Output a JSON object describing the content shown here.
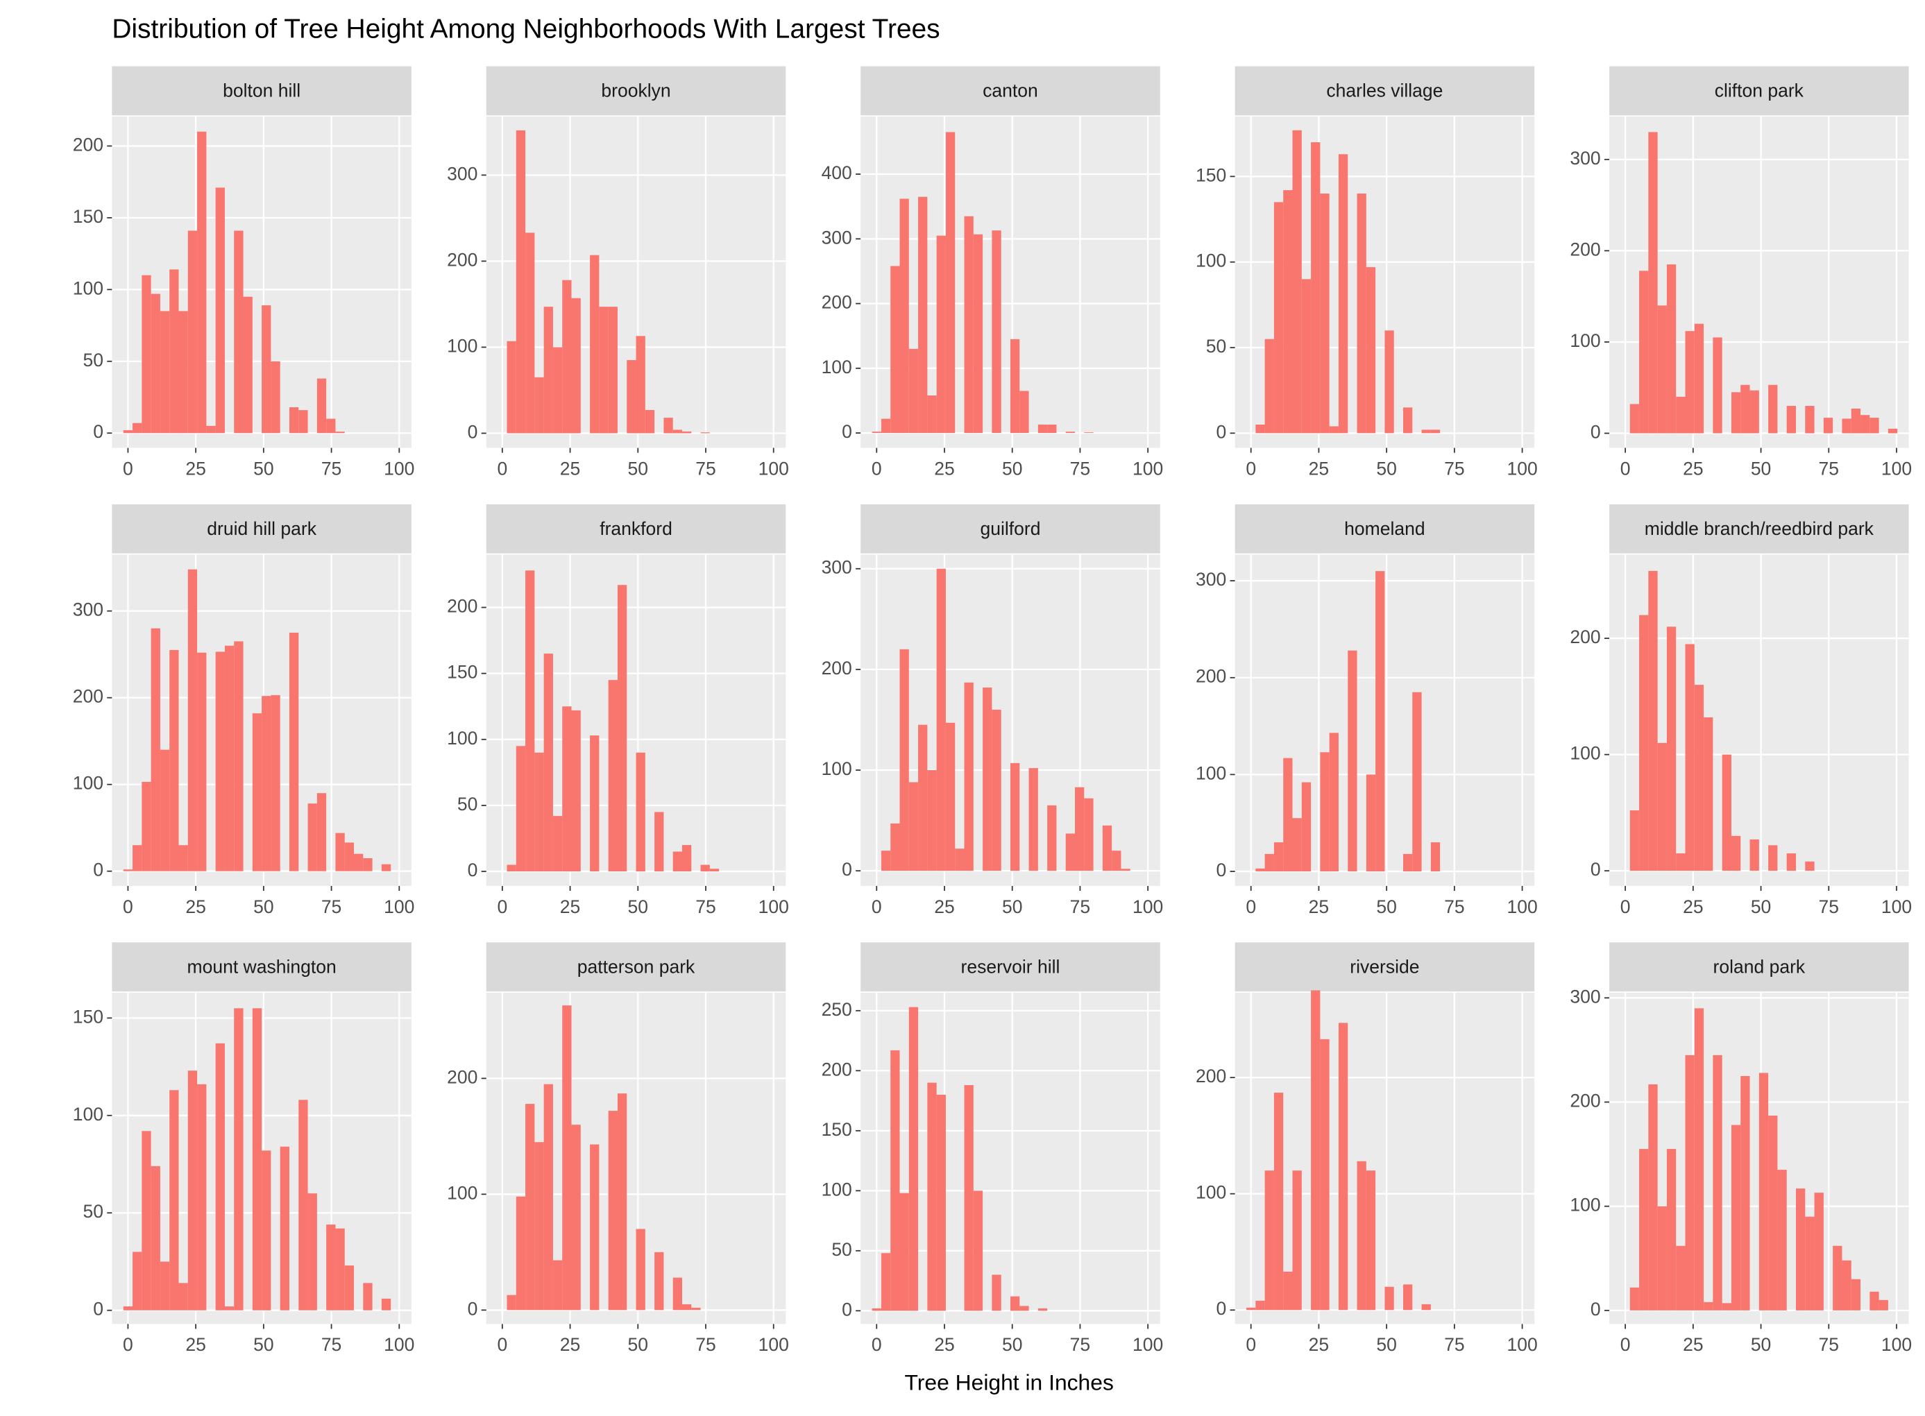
{
  "chart_data": {
    "type": "histogram",
    "title": "Distribution of Tree Height Among Neighborhoods With Largest Trees",
    "x_label": "Tree Height in Inches",
    "color": "#f8766d",
    "xlim": [
      -5.9,
      104.5
    ],
    "xticks": [
      0,
      25,
      50,
      75,
      100
    ],
    "bins": [
      -1.7,
      1.7,
      5.1,
      8.5,
      11.9,
      15.3,
      18.7,
      22.1,
      25.5,
      28.9,
      32.3,
      35.7,
      39.1,
      42.5,
      45.9,
      49.3,
      52.7,
      56.1,
      59.5,
      62.9,
      66.3,
      69.7,
      73.1,
      76.5,
      79.9,
      83.3,
      86.7,
      90.1,
      93.5,
      96.9,
      100.3
    ],
    "panels": [
      {
        "name": "bolton hill",
        "ylim": [
          -10.3,
          220.5
        ],
        "yticks": [
          0,
          50,
          100,
          150,
          200
        ],
        "values": [
          2,
          7,
          110,
          97,
          85,
          114,
          85,
          141,
          210,
          5,
          171,
          0,
          141,
          95,
          0,
          89,
          50,
          0,
          18,
          16,
          0,
          38,
          10,
          1,
          0,
          0,
          0,
          0,
          0,
          0
        ]
      },
      {
        "name": "brooklyn",
        "ylim": [
          -17,
          368
        ],
        "yticks": [
          0,
          100,
          200,
          300
        ],
        "values": [
          0,
          107,
          352,
          233,
          65,
          147,
          100,
          178,
          157,
          0,
          207,
          147,
          147,
          0,
          85,
          113,
          27,
          0,
          18,
          4,
          2,
          0,
          1,
          0,
          0,
          0,
          0,
          0,
          0,
          0
        ]
      },
      {
        "name": "canton",
        "ylim": [
          -23,
          489
        ],
        "yticks": [
          0,
          100,
          200,
          300,
          400
        ],
        "values": [
          2,
          22,
          258,
          362,
          130,
          365,
          58,
          305,
          465,
          0,
          335,
          307,
          0,
          313,
          0,
          145,
          65,
          0,
          13,
          13,
          0,
          2,
          0,
          1,
          0,
          0,
          0,
          0,
          0,
          0
        ]
      },
      {
        "name": "charles village",
        "ylim": [
          -8.6,
          185
        ],
        "yticks": [
          0,
          50,
          100,
          150
        ],
        "values": [
          0,
          5,
          55,
          135,
          142,
          177,
          90,
          170,
          140,
          4,
          163,
          0,
          140,
          97,
          0,
          60,
          0,
          15,
          0,
          2,
          2,
          0,
          0,
          0,
          0,
          0,
          0,
          0,
          0,
          0
        ]
      },
      {
        "name": "clifton park",
        "ylim": [
          -16,
          347
        ],
        "yticks": [
          0,
          100,
          200,
          300
        ],
        "values": [
          0,
          32,
          178,
          330,
          140,
          185,
          40,
          112,
          120,
          0,
          105,
          0,
          45,
          53,
          47,
          0,
          53,
          0,
          30,
          0,
          30,
          0,
          17,
          0,
          16,
          27,
          20,
          17,
          0,
          5
        ]
      },
      {
        "name": "druid hill park",
        "ylim": [
          -17,
          365
        ],
        "yticks": [
          0,
          100,
          200,
          300
        ],
        "values": [
          2,
          30,
          103,
          280,
          140,
          255,
          30,
          348,
          252,
          0,
          253,
          260,
          265,
          0,
          182,
          202,
          203,
          0,
          275,
          0,
          78,
          90,
          0,
          44,
          33,
          20,
          15,
          0,
          8,
          0
        ]
      },
      {
        "name": "frankford",
        "ylim": [
          -11,
          240
        ],
        "yticks": [
          0,
          50,
          100,
          150,
          200
        ],
        "values": [
          0,
          5,
          95,
          228,
          90,
          165,
          42,
          125,
          122,
          0,
          103,
          0,
          145,
          217,
          0,
          90,
          0,
          45,
          0,
          15,
          20,
          0,
          5,
          2,
          0,
          0,
          0,
          0,
          0,
          0
        ]
      },
      {
        "name": "guilford",
        "ylim": [
          -15,
          314
        ],
        "yticks": [
          0,
          100,
          200,
          300
        ],
        "values": [
          0,
          20,
          47,
          220,
          88,
          145,
          100,
          300,
          147,
          22,
          187,
          0,
          182,
          160,
          0,
          107,
          0,
          102,
          0,
          65,
          0,
          37,
          83,
          72,
          0,
          45,
          20,
          2,
          0,
          0
        ]
      },
      {
        "name": "homeland",
        "ylim": [
          -15,
          327
        ],
        "yticks": [
          0,
          100,
          200,
          300
        ],
        "values": [
          0,
          3,
          18,
          30,
          117,
          55,
          92,
          0,
          123,
          143,
          0,
          228,
          0,
          100,
          310,
          0,
          0,
          18,
          185,
          0,
          30,
          0,
          0,
          0,
          0,
          0,
          0,
          0,
          0,
          0
        ]
      },
      {
        "name": "middle branch/reedbird park",
        "ylim": [
          -13,
          272
        ],
        "yticks": [
          0,
          100,
          200
        ],
        "values": [
          0,
          52,
          220,
          258,
          110,
          210,
          15,
          195,
          160,
          132,
          0,
          100,
          30,
          0,
          27,
          0,
          22,
          0,
          15,
          0,
          8,
          0,
          0,
          0,
          0,
          0,
          0,
          0,
          0,
          0
        ]
      },
      {
        "name": "mount washington",
        "ylim": [
          -7,
          163
        ],
        "yticks": [
          0,
          50,
          100,
          150
        ],
        "values": [
          2,
          30,
          92,
          74,
          25,
          113,
          14,
          123,
          116,
          0,
          137,
          2,
          155,
          0,
          155,
          82,
          0,
          84,
          0,
          108,
          60,
          0,
          44,
          42,
          23,
          0,
          14,
          0,
          6,
          0
        ]
      },
      {
        "name": "patterson park",
        "ylim": [
          -12,
          274
        ],
        "yticks": [
          0,
          100,
          200
        ],
        "values": [
          0,
          13,
          98,
          178,
          145,
          195,
          43,
          263,
          160,
          0,
          143,
          0,
          172,
          187,
          0,
          70,
          0,
          50,
          0,
          28,
          5,
          2,
          0,
          0,
          0,
          0,
          0,
          0,
          0,
          0
        ]
      },
      {
        "name": "reservoir hill",
        "ylim": [
          -11,
          265
        ],
        "yticks": [
          0,
          50,
          100,
          150,
          200,
          250
        ],
        "values": [
          2,
          48,
          217,
          98,
          253,
          0,
          190,
          180,
          0,
          0,
          188,
          100,
          0,
          30,
          0,
          12,
          4,
          0,
          2,
          0,
          0,
          0,
          0,
          0,
          0,
          0,
          0,
          0,
          0,
          0
        ]
      },
      {
        "name": "riverside",
        "ylim": [
          -12,
          273
        ],
        "yticks": [
          0,
          100,
          200
        ],
        "values": [
          2,
          8,
          120,
          187,
          33,
          120,
          0,
          275,
          233,
          0,
          247,
          0,
          128,
          120,
          0,
          20,
          0,
          22,
          0,
          5,
          0,
          0,
          0,
          0,
          0,
          0,
          0,
          0,
          0,
          0
        ]
      },
      {
        "name": "roland park",
        "ylim": [
          -13,
          305
        ],
        "yticks": [
          0,
          100,
          200,
          300
        ],
        "values": [
          0,
          22,
          155,
          217,
          100,
          155,
          62,
          245,
          290,
          8,
          245,
          7,
          178,
          225,
          0,
          228,
          187,
          135,
          0,
          117,
          90,
          113,
          0,
          62,
          48,
          30,
          0,
          18,
          10,
          0
        ]
      }
    ]
  }
}
